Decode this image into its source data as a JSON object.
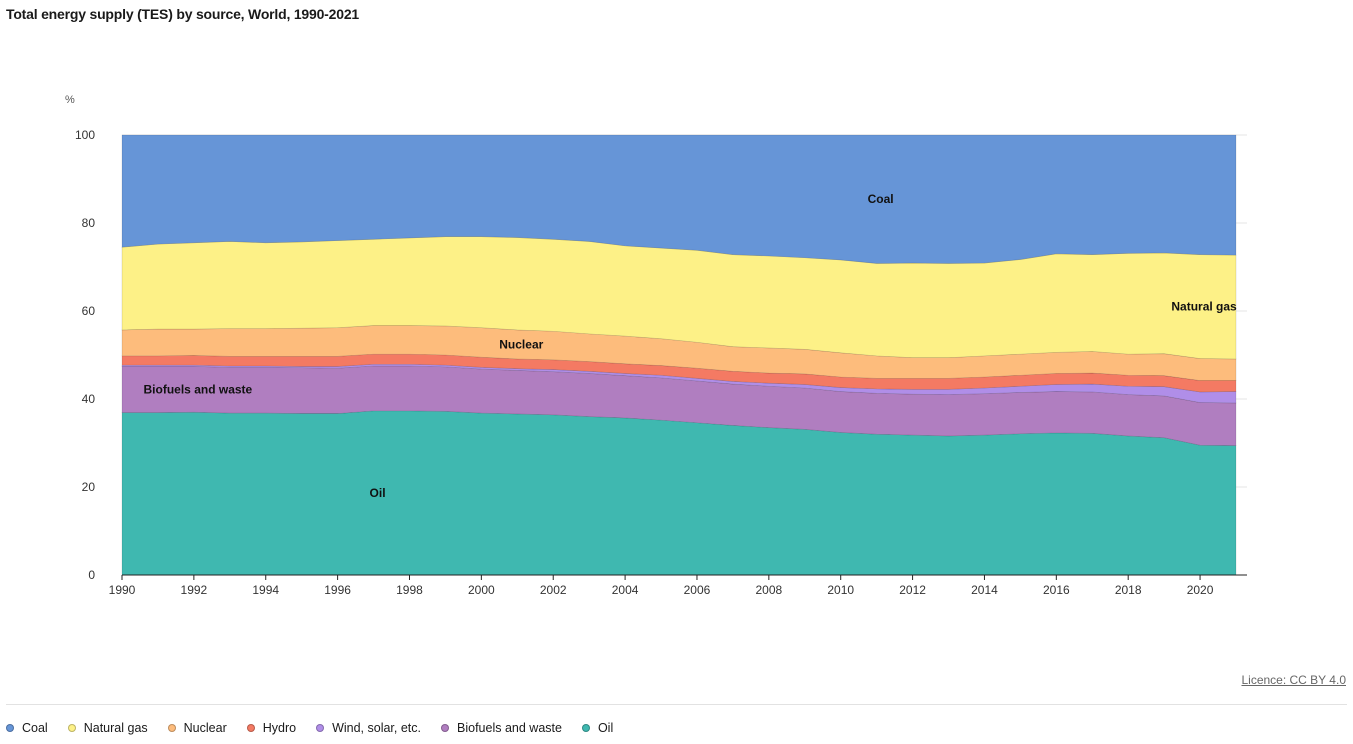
{
  "title": "Total energy supply (TES) by source, World, 1990-2021",
  "unit_label": "%",
  "licence": "Licence: CC BY 4.0",
  "chart_data": {
    "type": "area",
    "stacked": true,
    "x": [
      1990,
      1991,
      1992,
      1993,
      1994,
      1995,
      1996,
      1997,
      1998,
      1999,
      2000,
      2001,
      2002,
      2003,
      2004,
      2005,
      2006,
      2007,
      2008,
      2009,
      2010,
      2011,
      2012,
      2013,
      2014,
      2015,
      2016,
      2017,
      2018,
      2019,
      2020,
      2021
    ],
    "x_ticks": [
      1990,
      1992,
      1994,
      1996,
      1998,
      2000,
      2002,
      2004,
      2006,
      2008,
      2010,
      2012,
      2014,
      2016,
      2018,
      2020
    ],
    "y_ticks": [
      0,
      20,
      40,
      60,
      80,
      100
    ],
    "ylim": [
      0,
      100
    ],
    "xlim": [
      1990,
      2021
    ],
    "grid": true,
    "legend_position": "bottom",
    "series": [
      {
        "name": "Oil",
        "color": "#3fb8b0",
        "values": [
          36.9,
          36.9,
          37.0,
          36.8,
          36.8,
          36.7,
          36.7,
          37.3,
          37.3,
          37.2,
          36.8,
          36.6,
          36.4,
          36.0,
          35.7,
          35.2,
          34.6,
          34.0,
          33.5,
          33.1,
          32.4,
          32.0,
          31.8,
          31.6,
          31.8,
          32.1,
          32.3,
          32.2,
          31.6,
          31.2,
          29.5,
          29.4
        ]
      },
      {
        "name": "Biofuels and waste",
        "color": "#b07ec0",
        "values": [
          10.5,
          10.5,
          10.4,
          10.4,
          10.4,
          10.4,
          10.3,
          10.2,
          10.2,
          10.1,
          10.0,
          9.9,
          9.8,
          9.8,
          9.6,
          9.6,
          9.5,
          9.4,
          9.4,
          9.4,
          9.3,
          9.3,
          9.3,
          9.4,
          9.4,
          9.4,
          9.4,
          9.4,
          9.4,
          9.5,
          9.7,
          9.7
        ]
      },
      {
        "name": "Wind, solar, etc.",
        "color": "#b08ee8",
        "values": [
          0.3,
          0.3,
          0.3,
          0.3,
          0.3,
          0.3,
          0.4,
          0.4,
          0.4,
          0.4,
          0.4,
          0.4,
          0.5,
          0.5,
          0.5,
          0.6,
          0.6,
          0.6,
          0.7,
          0.8,
          0.9,
          1.0,
          1.1,
          1.2,
          1.3,
          1.4,
          1.6,
          1.8,
          1.9,
          2.1,
          2.4,
          2.6
        ]
      },
      {
        "name": "Hydro",
        "color": "#f47a63",
        "values": [
          2.1,
          2.1,
          2.2,
          2.2,
          2.2,
          2.3,
          2.3,
          2.3,
          2.3,
          2.3,
          2.3,
          2.2,
          2.2,
          2.2,
          2.2,
          2.2,
          2.3,
          2.3,
          2.3,
          2.4,
          2.4,
          2.4,
          2.5,
          2.5,
          2.5,
          2.5,
          2.5,
          2.5,
          2.5,
          2.5,
          2.6,
          2.5
        ]
      },
      {
        "name": "Nuclear",
        "color": "#fdbc7c",
        "values": [
          5.9,
          6.1,
          6.0,
          6.3,
          6.3,
          6.4,
          6.5,
          6.5,
          6.5,
          6.6,
          6.7,
          6.6,
          6.5,
          6.3,
          6.3,
          6.1,
          5.9,
          5.6,
          5.7,
          5.6,
          5.5,
          5.1,
          4.7,
          4.7,
          4.8,
          4.8,
          4.8,
          4.9,
          4.8,
          5.0,
          5.0,
          4.9
        ]
      },
      {
        "name": "Natural gas",
        "color": "#fdf187",
        "values": [
          18.8,
          19.3,
          19.6,
          19.8,
          19.5,
          19.6,
          19.8,
          19.6,
          19.9,
          20.3,
          20.7,
          21.0,
          20.9,
          21.0,
          20.5,
          20.6,
          20.9,
          20.9,
          20.9,
          20.8,
          21.1,
          21.0,
          21.5,
          21.4,
          21.1,
          21.5,
          22.4,
          22.0,
          22.9,
          22.9,
          23.6,
          23.6
        ]
      },
      {
        "name": "Coal",
        "color": "#6695d7",
        "values": [
          25.5,
          24.8,
          24.5,
          24.2,
          24.5,
          24.3,
          24.0,
          23.7,
          23.4,
          23.1,
          23.1,
          23.3,
          23.7,
          24.2,
          25.2,
          25.7,
          26.2,
          27.2,
          27.5,
          27.9,
          28.4,
          29.2,
          29.1,
          29.2,
          29.1,
          28.3,
          27.0,
          27.2,
          26.9,
          26.8,
          27.2,
          27.3
        ]
      }
    ],
    "area_labels": [
      {
        "text": "Coal",
        "series": "Coal"
      },
      {
        "text": "Natural gas",
        "series": "Natural gas"
      },
      {
        "text": "Nuclear",
        "series": "Nuclear"
      },
      {
        "text": "Biofuels and waste",
        "series": "Biofuels and waste"
      },
      {
        "text": "Oil",
        "series": "Oil"
      }
    ]
  },
  "legend": [
    {
      "label": "Coal",
      "color": "#6695d7"
    },
    {
      "label": "Natural gas",
      "color": "#fdf187"
    },
    {
      "label": "Nuclear",
      "color": "#fdbc7c"
    },
    {
      "label": "Hydro",
      "color": "#f47a63"
    },
    {
      "label": "Wind, solar, etc.",
      "color": "#b08ee8"
    },
    {
      "label": "Biofuels and waste",
      "color": "#b07ec0"
    },
    {
      "label": "Oil",
      "color": "#3fb8b0"
    }
  ]
}
